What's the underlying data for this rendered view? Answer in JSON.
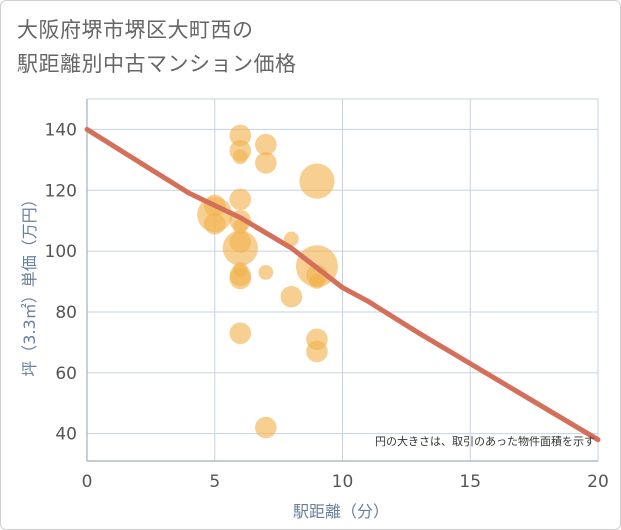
{
  "chart_data": {
    "type": "scatter",
    "title_lines": [
      "大阪府堺市堺区大町西の",
      "駅距離別中古マンション価格"
    ],
    "xlabel": "駅距離（分）",
    "ylabel": "坪（3.3㎡）単価（万円）",
    "xlim": [
      0,
      20
    ],
    "ylim": [
      31,
      150
    ],
    "x_ticks": [
      0,
      5,
      10,
      15,
      20
    ],
    "y_ticks": [
      40,
      60,
      80,
      100,
      120,
      140
    ],
    "grid": true,
    "note": "円の大きさは、取引のあった物件面積を示す",
    "colors": {
      "bubble": "#f2b24d",
      "trend": "#d4705a",
      "grid": "#c5d3e0"
    },
    "bubbles": [
      {
        "x": 6,
        "y": 138,
        "size": 2
      },
      {
        "x": 7,
        "y": 135,
        "size": 2
      },
      {
        "x": 6,
        "y": 133,
        "size": 2
      },
      {
        "x": 6,
        "y": 131,
        "size": 1
      },
      {
        "x": 7,
        "y": 129,
        "size": 2
      },
      {
        "x": 9,
        "y": 123,
        "size": 4
      },
      {
        "x": 6,
        "y": 117,
        "size": 2
      },
      {
        "x": 5,
        "y": 115,
        "size": 2
      },
      {
        "x": 5,
        "y": 112,
        "size": 4
      },
      {
        "x": 6,
        "y": 110,
        "size": 2
      },
      {
        "x": 5,
        "y": 109,
        "size": 2
      },
      {
        "x": 6,
        "y": 108,
        "size": 1
      },
      {
        "x": 8,
        "y": 104,
        "size": 1
      },
      {
        "x": 6,
        "y": 103,
        "size": 2
      },
      {
        "x": 6,
        "y": 101,
        "size": 4
      },
      {
        "x": 9,
        "y": 95,
        "size": 5
      },
      {
        "x": 9,
        "y": 92,
        "size": 2
      },
      {
        "x": 6,
        "y": 94,
        "size": 1
      },
      {
        "x": 7,
        "y": 93,
        "size": 1
      },
      {
        "x": 6,
        "y": 92,
        "size": 2
      },
      {
        "x": 6,
        "y": 91,
        "size": 2
      },
      {
        "x": 9,
        "y": 90,
        "size": 1
      },
      {
        "x": 8,
        "y": 85,
        "size": 2
      },
      {
        "x": 6,
        "y": 73,
        "size": 2
      },
      {
        "x": 9,
        "y": 71,
        "size": 2
      },
      {
        "x": 9,
        "y": 67,
        "size": 2
      },
      {
        "x": 7,
        "y": 42,
        "size": 2
      }
    ],
    "trend_line": {
      "x": [
        0,
        2,
        4,
        6,
        8,
        10,
        11,
        13,
        15,
        17,
        20
      ],
      "y": [
        140,
        129.5,
        119,
        111,
        101,
        88,
        83.5,
        73,
        63,
        53,
        38
      ]
    }
  }
}
